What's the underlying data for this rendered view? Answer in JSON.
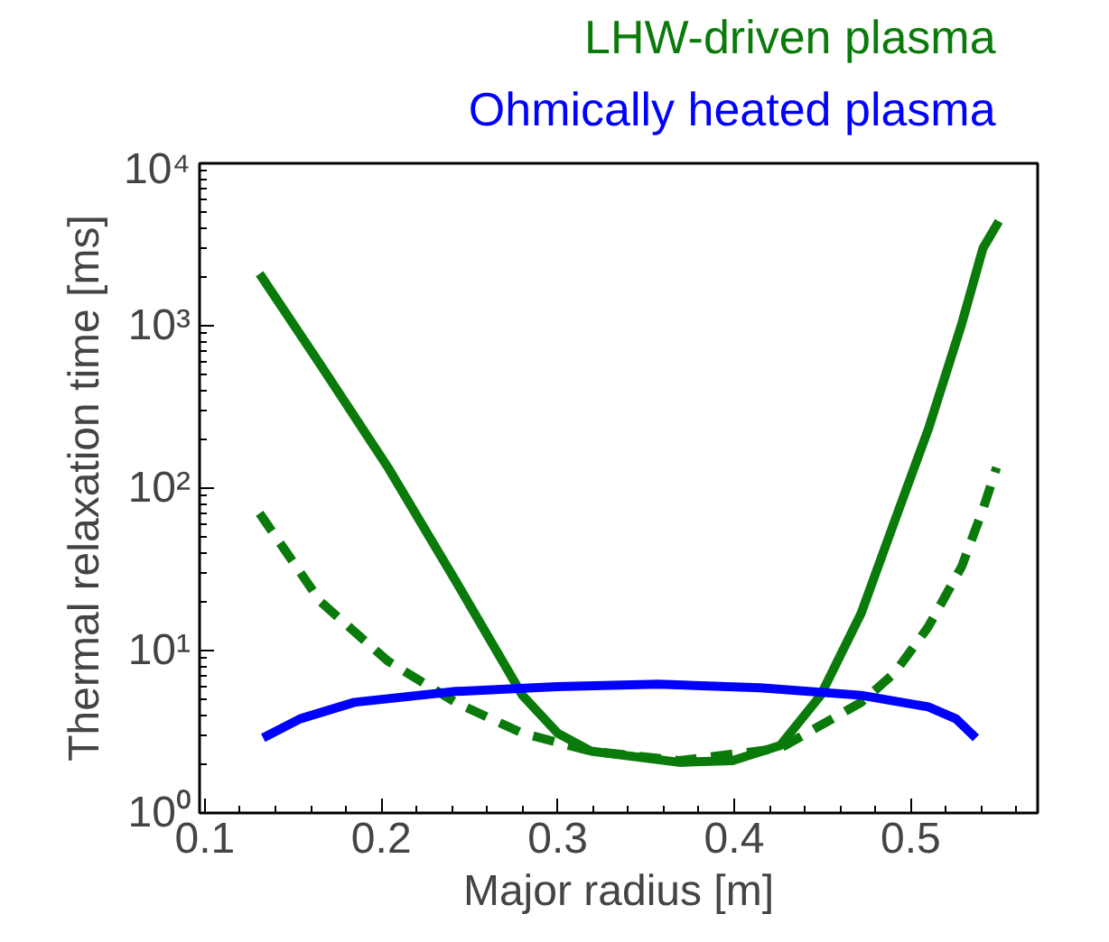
{
  "chart_data": {
    "type": "line",
    "xlabel": "Major radius [m]",
    "ylabel": "Thermal relaxation time [ms]",
    "log": "y",
    "legend": "top",
    "grid": false,
    "xlim": [
      0.097,
      0.572
    ],
    "xticks": [
      0.1,
      0.2,
      0.3,
      0.4,
      0.5
    ],
    "ylim": [
      1,
      10000
    ],
    "yticks": [
      {
        "value": 1,
        "label": "10⁰"
      },
      {
        "value": 10,
        "label": "10¹"
      },
      {
        "value": 100,
        "label": "10²"
      },
      {
        "value": 1000,
        "label": "10³"
      },
      {
        "value": 10000,
        "label": "10⁴"
      }
    ],
    "series": [
      {
        "name": "LHW-driven plasma",
        "color": "#0a7a0a",
        "line_style": "solid",
        "x": [
          0.131,
          0.1655,
          0.2038,
          0.242,
          0.28,
          0.3,
          0.319,
          0.369,
          0.399,
          0.426,
          0.449,
          0.472,
          0.491,
          0.51,
          0.529,
          0.541,
          0.55
        ],
        "values": [
          2090,
          575,
          134,
          27,
          5.3,
          3.1,
          2.4,
          2.05,
          2.1,
          2.6,
          5.3,
          17,
          63,
          230,
          1030,
          3000,
          4400
        ]
      },
      {
        "color": "#0a7a0a",
        "line_style": "dashed",
        "x": [
          0.131,
          0.1655,
          0.2038,
          0.242,
          0.28,
          0.319,
          0.369,
          0.426,
          0.472,
          0.491,
          0.51,
          0.529,
          0.541,
          0.5487
        ],
        "values": [
          70,
          20,
          8.6,
          4.8,
          3.1,
          2.4,
          2.1,
          2.5,
          4.8,
          7.3,
          14,
          33,
          74,
          134
        ]
      },
      {
        "name": "Ohmically heated plasma",
        "color": "#0000ff",
        "line_style": "solid",
        "x": [
          0.133,
          0.154,
          0.1847,
          0.242,
          0.2996,
          0.357,
          0.4146,
          0.472,
          0.51,
          0.5257,
          0.537
        ],
        "values": [
          2.9,
          3.8,
          4.8,
          5.6,
          6.0,
          6.2,
          5.9,
          5.3,
          4.5,
          3.8,
          2.9
        ]
      }
    ]
  }
}
